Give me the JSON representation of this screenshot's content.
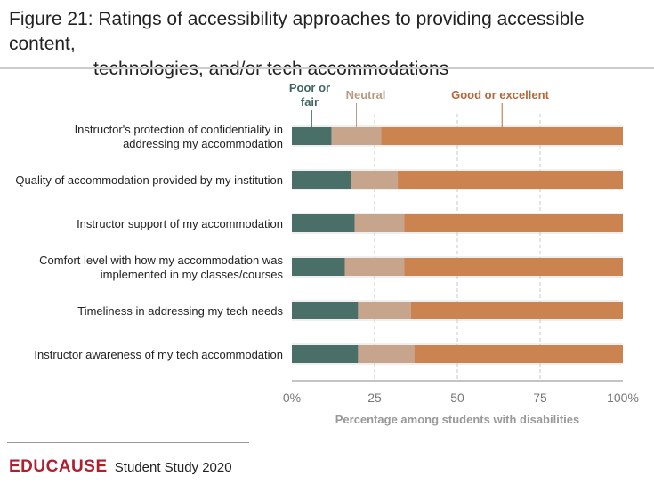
{
  "title_line1": "Figure 21: Ratings of accessibility approaches to providing accessible content,",
  "title_line2": "technologies, and/or tech accommodations",
  "footer": {
    "brand": "EDUCAUSE",
    "text": "Student Study 2020"
  },
  "colors": {
    "poor": "#4a6f69",
    "neutral": "#c7a58c",
    "good": "#cb844f",
    "band": "#efefef"
  },
  "chart_data": {
    "type": "bar",
    "orientation": "horizontal",
    "stacked": true,
    "xlabel": "Percentage among students with disabilities",
    "xlim": [
      0,
      100
    ],
    "xticks": [
      "0%",
      "25",
      "50",
      "75",
      "100%"
    ],
    "legend_placement": "top, annotated above first bar",
    "categories": [
      "Instructor's protection of confidentiality in addressing my accommodation",
      "Quality of accommodation provided by my institution",
      "Instructor support of my accommodation",
      "Comfort level with how my accommodation was implemented in my classes/courses",
      "Timeliness in addressing my tech needs",
      "Instructor awareness of my tech accommodation"
    ],
    "category_lines": [
      [
        "Instructor's protection of confidentiality in",
        "addressing my accommodation"
      ],
      [
        "Quality of accommodation provided by my institution"
      ],
      [
        "Instructor support of my accommodation"
      ],
      [
        "Comfort level with how my accommodation was",
        "implemented in my classes/courses"
      ],
      [
        "Timeliness in addressing my tech needs"
      ],
      [
        "Instructor awareness of my tech accommodation"
      ]
    ],
    "series": [
      {
        "name": "Poor or fair",
        "name_lines": [
          "Poor or",
          "fair"
        ],
        "values": [
          12,
          18,
          19,
          16,
          20,
          20
        ]
      },
      {
        "name": "Neutral",
        "name_lines": [
          "Neutral"
        ],
        "values": [
          15,
          14,
          15,
          18,
          16,
          17
        ]
      },
      {
        "name": "Good or excellent",
        "name_lines": [
          "Good or excellent"
        ],
        "values": [
          73,
          68,
          66,
          66,
          64,
          63
        ]
      }
    ]
  }
}
